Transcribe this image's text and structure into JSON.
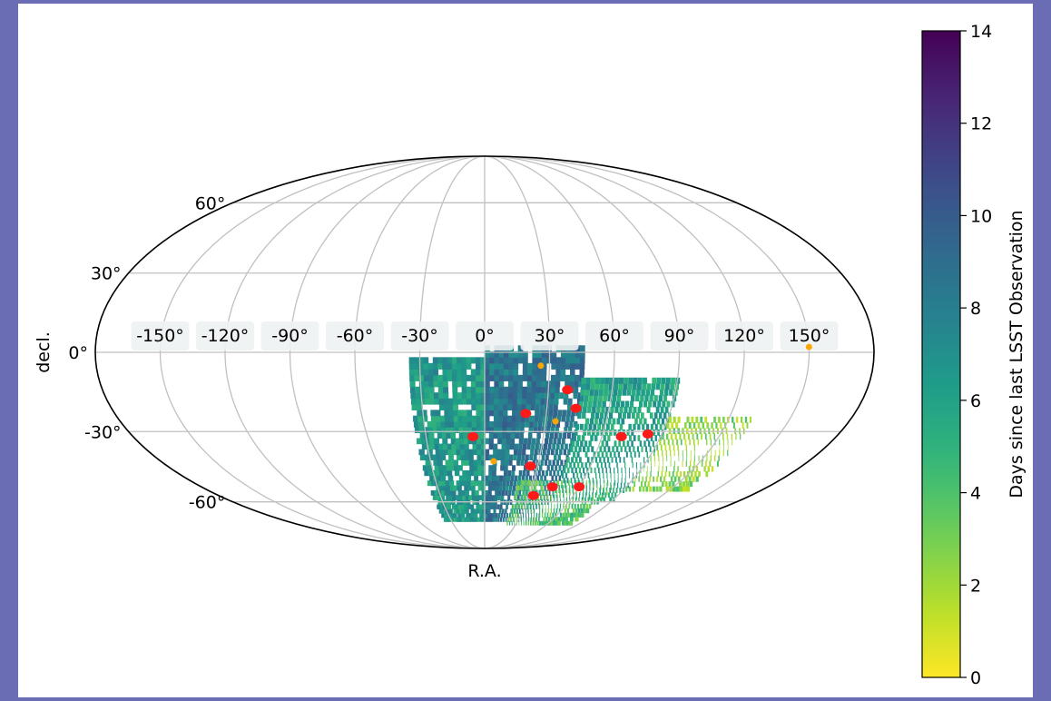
{
  "chart_data": {
    "type": "heatmap",
    "projection": "mollweide",
    "xlabel": "R.A.",
    "ylabel": "decl.",
    "ra_tick_labels": [
      "-150°",
      "-120°",
      "-90°",
      "-60°",
      "-30°",
      "0°",
      "30°",
      "60°",
      "90°",
      "120°",
      "150°"
    ],
    "ra_ticks": [
      -150,
      -120,
      -90,
      -60,
      -30,
      0,
      30,
      60,
      90,
      120,
      150
    ],
    "dec_tick_labels": [
      "-60°",
      "-30°",
      "0°",
      "30°",
      "60°"
    ],
    "dec_ticks": [
      -60,
      -30,
      0,
      30,
      60
    ],
    "grid": true,
    "colorbar": {
      "label": "Days since last LSST Observation",
      "range": [
        0,
        14
      ],
      "ticks": [
        0,
        2,
        4,
        6,
        8,
        10,
        12,
        14
      ],
      "tick_labels": [
        "0",
        "2",
        "4",
        "6",
        "8",
        "10",
        "12",
        "14"
      ],
      "colormap": "viridis_r"
    },
    "coverage_regions": [
      {
        "ra_range": [
          -35,
          0
        ],
        "dec_range": [
          -70,
          -2
        ],
        "value": 6.5
      },
      {
        "ra_range": [
          0,
          45
        ],
        "dec_range": [
          -70,
          2
        ],
        "value": 8.5
      },
      {
        "ra_range": [
          45,
          90
        ],
        "dec_range": [
          -60,
          -10
        ],
        "value": 6
      },
      {
        "ra_range": [
          90,
          130
        ],
        "dec_range": [
          -55,
          -25
        ],
        "value": 2.5
      },
      {
        "ra_range": [
          20,
          80
        ],
        "dec_range": [
          -72,
          -50
        ],
        "value": 4
      }
    ],
    "red_points": [
      {
        "ra": -6,
        "dec": -32
      },
      {
        "ra": 20,
        "dec": -23
      },
      {
        "ra": 39,
        "dec": -14
      },
      {
        "ra": 44,
        "dec": -21
      },
      {
        "ra": 26,
        "dec": -44
      },
      {
        "ra": 33,
        "dec": -57
      },
      {
        "ra": 43,
        "dec": -53
      },
      {
        "ra": 60,
        "dec": -53
      },
      {
        "ra": 70,
        "dec": -32
      },
      {
        "ra": 83,
        "dec": -31
      }
    ],
    "orange_points": [
      {
        "ra": 26,
        "dec": -5
      },
      {
        "ra": 35,
        "dec": -26
      },
      {
        "ra": 5,
        "dec": -42
      },
      {
        "ra": 150,
        "dec": 2
      }
    ],
    "colors": {
      "red_point": "#ff1a1a",
      "orange_point": "#ffa500",
      "grid": "#c0c0c0",
      "border": "#6b6db4"
    }
  }
}
